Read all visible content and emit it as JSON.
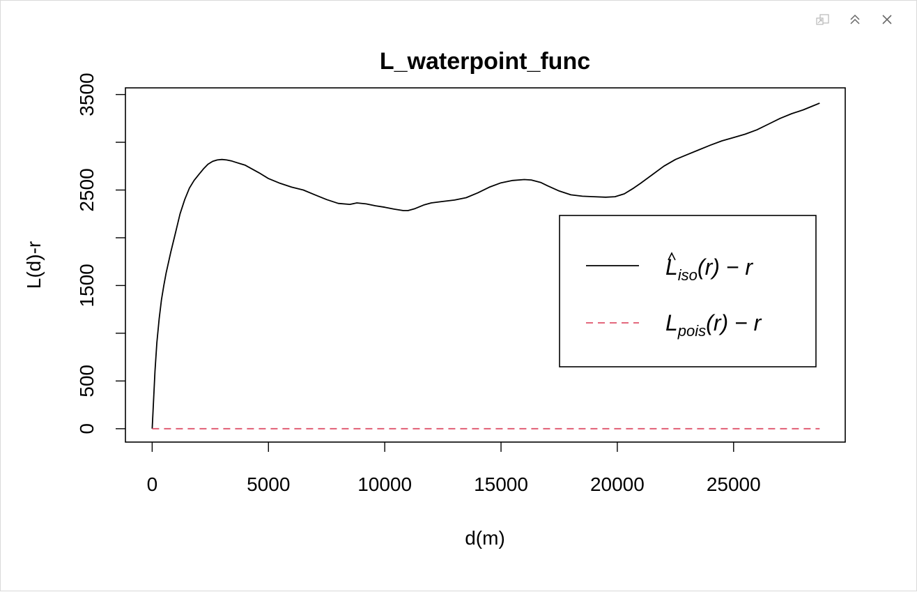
{
  "window": {
    "controls": [
      "popout-icon",
      "collapse-icon",
      "close-icon"
    ]
  },
  "chart_data": {
    "type": "line",
    "title": "L_waterpoint_func",
    "xlabel": "d(m)",
    "ylabel": "L(d)-r",
    "xlim": [
      -1150,
      29800
    ],
    "ylim": [
      -140,
      3570
    ],
    "xticks": [
      "0",
      "5000",
      "10000",
      "15000",
      "20000",
      "25000"
    ],
    "xtick_values": [
      0,
      5000,
      10000,
      15000,
      20000,
      25000
    ],
    "yticks": [
      "0",
      "500",
      "1500",
      "2500",
      "3500"
    ],
    "ytick_values": [
      0,
      500,
      1500,
      2500,
      3500
    ],
    "yticks_minor": [
      1000,
      2000,
      3000
    ],
    "grid": false,
    "legend_position": "right",
    "colors": {
      "iso": "#000000",
      "pois": "#DF536B"
    },
    "series": [
      {
        "name": "L̂iso(r) − r",
        "legend_main": "L",
        "legend_sub": "iso",
        "legend_tail": "(r) − r",
        "style": "solid",
        "x": [
          0,
          60,
          120,
          200,
          300,
          400,
          500,
          600,
          800,
          1000,
          1200,
          1400,
          1600,
          1800,
          2000,
          2200,
          2400,
          2600,
          2800,
          3000,
          3200,
          3400,
          3600,
          3800,
          4000,
          4300,
          4600,
          5000,
          5500,
          6000,
          6500,
          7000,
          7500,
          8000,
          8500,
          8800,
          9200,
          9600,
          10000,
          10400,
          10800,
          11000,
          11300,
          11700,
          12000,
          12500,
          13000,
          13500,
          14000,
          14500,
          15000,
          15500,
          16000,
          16300,
          16700,
          17000,
          17500,
          18000,
          18500,
          19000,
          19500,
          19900,
          20300,
          20700,
          21000,
          21500,
          22000,
          22500,
          23000,
          23500,
          24000,
          24500,
          25000,
          25500,
          26000,
          26500,
          27000,
          27500,
          28000,
          28400,
          28700
        ],
        "y": [
          0,
          300,
          600,
          900,
          1150,
          1350,
          1500,
          1630,
          1850,
          2050,
          2250,
          2400,
          2520,
          2600,
          2660,
          2720,
          2770,
          2800,
          2815,
          2820,
          2815,
          2805,
          2790,
          2775,
          2760,
          2720,
          2680,
          2620,
          2570,
          2530,
          2500,
          2450,
          2400,
          2360,
          2350,
          2365,
          2355,
          2335,
          2320,
          2300,
          2285,
          2285,
          2305,
          2345,
          2365,
          2380,
          2395,
          2420,
          2470,
          2530,
          2575,
          2600,
          2610,
          2605,
          2580,
          2545,
          2490,
          2450,
          2435,
          2430,
          2425,
          2430,
          2460,
          2520,
          2570,
          2660,
          2750,
          2820,
          2870,
          2920,
          2970,
          3015,
          3050,
          3085,
          3130,
          3190,
          3250,
          3300,
          3340,
          3380,
          3410
        ]
      },
      {
        "name": "Lpois(r) − r",
        "legend_main": "L",
        "legend_sub": "pois",
        "legend_tail": "(r) − r",
        "style": "dashed",
        "x": [
          0,
          28700
        ],
        "y": [
          0,
          0
        ]
      }
    ]
  }
}
